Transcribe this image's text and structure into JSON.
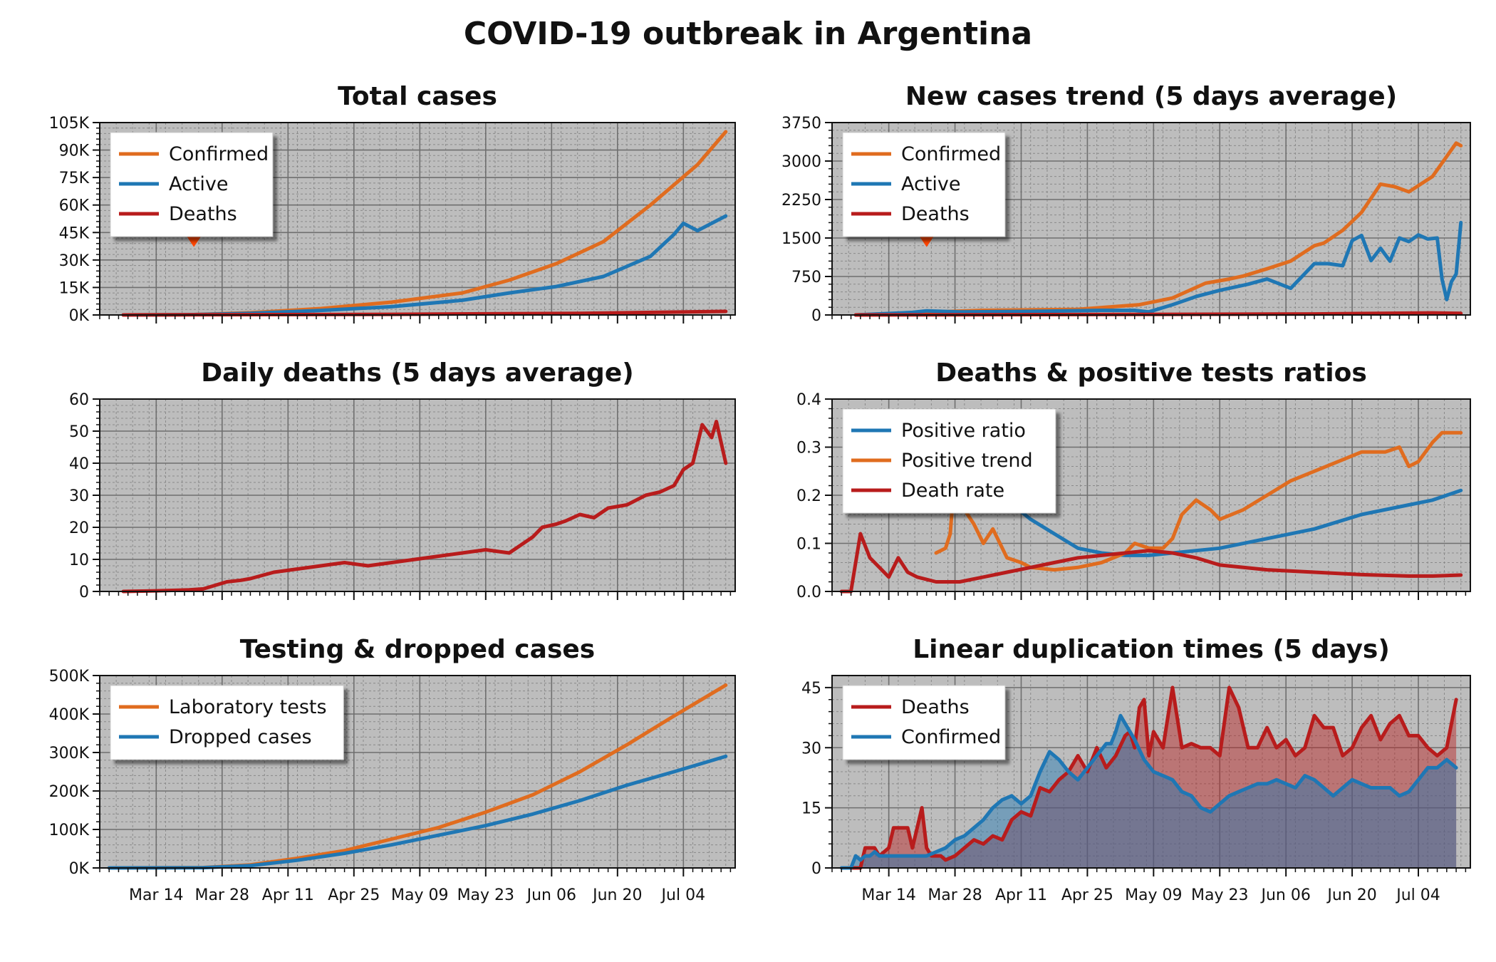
{
  "title": "COVID-19 outbreak in Argentina",
  "colors": {
    "orange": "#e06c1f",
    "blue": "#1f77b4",
    "red": "#b81c1c",
    "arrow": "#ff4500",
    "panel_bg": "#bdbdbd"
  },
  "x_axis": {
    "tick_labels": [
      "Mar 14",
      "Mar 28",
      "Apr 11",
      "Apr 25",
      "May 09",
      "May 23",
      "Jun 06",
      "Jun 20",
      "Jul 04"
    ],
    "tick_days": [
      10,
      24,
      38,
      52,
      66,
      80,
      94,
      108,
      122
    ]
  },
  "chart_data": [
    {
      "id": "total",
      "type": "line",
      "title": "Total cases",
      "ylim": [
        0,
        105000
      ],
      "yticks": [
        0,
        15000,
        30000,
        45000,
        60000,
        75000,
        90000,
        105000
      ],
      "ytick_labels": [
        "0K",
        "15K",
        "30K",
        "45K",
        "60K",
        "75K",
        "90K",
        "105K"
      ],
      "legend": "top-left",
      "arrow_day": 18,
      "series": [
        {
          "name": "Confirmed",
          "color": "#e06c1f",
          "x": [
            3,
            18,
            30,
            45,
            60,
            75,
            85,
            95,
            105,
            115,
            125,
            131
          ],
          "y": [
            0,
            200,
            1200,
            3500,
            7000,
            12000,
            19000,
            28000,
            40000,
            60000,
            82000,
            100000
          ]
        },
        {
          "name": "Active",
          "color": "#1f77b4",
          "x": [
            3,
            18,
            30,
            45,
            60,
            75,
            85,
            95,
            105,
            115,
            120,
            122,
            125,
            131
          ],
          "y": [
            0,
            180,
            900,
            2500,
            4500,
            8000,
            12000,
            15500,
            21000,
            32000,
            44000,
            50000,
            46000,
            54000
          ]
        },
        {
          "name": "Deaths",
          "color": "#b81c1c",
          "x": [
            3,
            60,
            100,
            131
          ],
          "y": [
            0,
            350,
            900,
            1950
          ]
        }
      ]
    },
    {
      "id": "newcases",
      "type": "line",
      "title": "New cases trend (5 days average)",
      "ylim": [
        0,
        3750
      ],
      "yticks": [
        0,
        750,
        1500,
        2250,
        3000,
        3750
      ],
      "ytick_labels": [
        "0",
        "750",
        "1500",
        "2250",
        "3000",
        "3750"
      ],
      "legend": "top-left",
      "arrow_day": 18,
      "series": [
        {
          "name": "Confirmed",
          "color": "#e06c1f",
          "x": [
            3,
            20,
            30,
            50,
            63,
            70,
            77,
            82,
            85,
            90,
            95,
            100,
            102,
            106,
            110,
            114,
            117,
            120,
            125,
            130,
            131
          ],
          "y": [
            0,
            60,
            90,
            110,
            200,
            330,
            620,
            700,
            760,
            900,
            1050,
            1350,
            1400,
            1650,
            2000,
            2550,
            2500,
            2400,
            2700,
            3350,
            3300
          ]
        },
        {
          "name": "Active",
          "color": "#1f77b4",
          "x": [
            3,
            15,
            18,
            25,
            40,
            55,
            62,
            65,
            70,
            75,
            80,
            86,
            90,
            95,
            100,
            103,
            106,
            108,
            110,
            112,
            114,
            116,
            118,
            120,
            122,
            124,
            126,
            127,
            128,
            129,
            130,
            131
          ],
          "y": [
            0,
            50,
            80,
            60,
            70,
            90,
            90,
            60,
            200,
            360,
            480,
            600,
            700,
            520,
            1000,
            1000,
            960,
            1450,
            1550,
            1060,
            1300,
            1050,
            1500,
            1430,
            1560,
            1480,
            1500,
            700,
            300,
            650,
            800,
            1800
          ]
        },
        {
          "name": "Deaths",
          "color": "#b81c1c",
          "x": [
            3,
            60,
            100,
            125,
            131
          ],
          "y": [
            0,
            10,
            20,
            40,
            30
          ]
        }
      ]
    },
    {
      "id": "dailydeaths",
      "type": "line",
      "title": "Daily deaths (5 days average)",
      "ylim": [
        0,
        60
      ],
      "yticks": [
        0,
        10,
        20,
        30,
        40,
        50,
        60
      ],
      "ytick_labels": [
        "0",
        "10",
        "20",
        "30",
        "40",
        "50",
        "60"
      ],
      "series": [
        {
          "name": "",
          "color": "#b81c1c",
          "x": [
            3,
            10,
            17,
            20,
            25,
            28,
            30,
            35,
            40,
            45,
            50,
            55,
            60,
            65,
            70,
            75,
            80,
            85,
            90,
            92,
            95,
            97,
            100,
            103,
            106,
            110,
            114,
            117,
            120,
            122,
            124,
            126,
            127,
            128,
            129,
            131
          ],
          "y": [
            0,
            0.2,
            0.5,
            0.8,
            3,
            3.5,
            4,
            6,
            7,
            8,
            9,
            8,
            9,
            10,
            11,
            12,
            13,
            12,
            17,
            20,
            21,
            22,
            24,
            23,
            26,
            27,
            30,
            31,
            33,
            38,
            40,
            52,
            50,
            48,
            53,
            40
          ]
        }
      ]
    },
    {
      "id": "ratios",
      "type": "line",
      "title": "Deaths & positive tests ratios",
      "ylim": [
        0,
        0.4
      ],
      "yticks": [
        0,
        0.1,
        0.2,
        0.3,
        0.4
      ],
      "ytick_labels": [
        "0.0",
        "0.1",
        "0.2",
        "0.3",
        "0.4"
      ],
      "legend": "top-left",
      "series": [
        {
          "name": "Positive ratio",
          "color": "#1f77b4",
          "x": [
            33,
            35,
            40,
            45,
            50,
            55,
            60,
            65,
            70,
            80,
            90,
            100,
            110,
            120,
            125,
            131
          ],
          "y": [
            0.24,
            0.19,
            0.15,
            0.12,
            0.09,
            0.08,
            0.075,
            0.075,
            0.08,
            0.09,
            0.11,
            0.13,
            0.16,
            0.18,
            0.19,
            0.21
          ]
        },
        {
          "name": "Positive trend",
          "color": "#e06c1f",
          "x": [
            20,
            22,
            23,
            24,
            25,
            26,
            28,
            30,
            32,
            35,
            38,
            40,
            45,
            50,
            55,
            60,
            62,
            65,
            68,
            70,
            72,
            75,
            78,
            80,
            85,
            90,
            95,
            100,
            105,
            110,
            115,
            118,
            120,
            122,
            125,
            127,
            131
          ],
          "y": [
            0.08,
            0.09,
            0.12,
            0.25,
            0.2,
            0.17,
            0.14,
            0.1,
            0.13,
            0.07,
            0.06,
            0.05,
            0.045,
            0.05,
            0.06,
            0.08,
            0.1,
            0.09,
            0.09,
            0.11,
            0.16,
            0.19,
            0.17,
            0.15,
            0.17,
            0.2,
            0.23,
            0.25,
            0.27,
            0.29,
            0.29,
            0.3,
            0.26,
            0.27,
            0.31,
            0.33,
            0.33
          ]
        },
        {
          "name": "Death rate",
          "color": "#b81c1c",
          "x": [
            0,
            2,
            4,
            6,
            8,
            10,
            12,
            14,
            16,
            20,
            25,
            30,
            35,
            40,
            45,
            50,
            55,
            60,
            65,
            70,
            75,
            80,
            90,
            100,
            110,
            120,
            125,
            131
          ],
          "y": [
            0,
            0,
            0.12,
            0.07,
            0.05,
            0.03,
            0.07,
            0.04,
            0.03,
            0.02,
            0.02,
            0.03,
            0.04,
            0.05,
            0.06,
            0.07,
            0.075,
            0.08,
            0.085,
            0.08,
            0.07,
            0.055,
            0.045,
            0.04,
            0.035,
            0.032,
            0.032,
            0.034
          ]
        }
      ]
    },
    {
      "id": "testing",
      "type": "line",
      "title": "Testing & dropped cases",
      "ylim": [
        0,
        500000
      ],
      "yticks": [
        0,
        100000,
        200000,
        300000,
        400000,
        500000
      ],
      "ytick_labels": [
        "0K",
        "100K",
        "200K",
        "300K",
        "400K",
        "500K"
      ],
      "legend": "top-left",
      "series": [
        {
          "name": "Laboratory tests",
          "color": "#e06c1f",
          "x": [
            0,
            20,
            30,
            40,
            50,
            60,
            70,
            80,
            90,
            100,
            110,
            120,
            131
          ],
          "y": [
            0,
            1000,
            8000,
            25000,
            45000,
            75000,
            105000,
            145000,
            190000,
            250000,
            320000,
            395000,
            475000
          ]
        },
        {
          "name": "Dropped cases",
          "color": "#1f77b4",
          "x": [
            0,
            20,
            30,
            40,
            50,
            60,
            70,
            80,
            90,
            100,
            110,
            120,
            131
          ],
          "y": [
            0,
            800,
            6000,
            20000,
            38000,
            60000,
            85000,
            110000,
            140000,
            175000,
            215000,
            250000,
            290000
          ]
        }
      ]
    },
    {
      "id": "duplication",
      "type": "area",
      "title": "Linear duplication times (5 days)",
      "ylim": [
        0,
        48
      ],
      "yticks": [
        0,
        15,
        30,
        45
      ],
      "ytick_labels": [
        "0",
        "15",
        "30",
        "45"
      ],
      "legend": "top-left",
      "series": [
        {
          "name": "Deaths",
          "color": "#b81c1c",
          "x": [
            2,
            4,
            5,
            7,
            8,
            10,
            11,
            14,
            15,
            17,
            18,
            19,
            20,
            21,
            22,
            24,
            26,
            28,
            30,
            32,
            34,
            36,
            38,
            40,
            42,
            44,
            46,
            48,
            50,
            52,
            54,
            56,
            58,
            60,
            61,
            62,
            63,
            64,
            65,
            66,
            68,
            70,
            72,
            74,
            76,
            78,
            80,
            82,
            84,
            86,
            88,
            90,
            92,
            94,
            96,
            98,
            100,
            102,
            104,
            106,
            108,
            110,
            112,
            114,
            116,
            118,
            120,
            122,
            124,
            126,
            128,
            130
          ],
          "y": [
            0,
            0,
            5,
            5,
            3,
            5,
            10,
            10,
            5,
            15,
            5,
            3,
            3,
            3,
            2,
            3,
            5,
            7,
            6,
            8,
            7,
            12,
            14,
            13,
            20,
            19,
            22,
            24,
            28,
            24,
            30,
            25,
            28,
            33,
            34,
            30,
            40,
            42,
            28,
            34,
            30,
            45,
            30,
            31,
            30,
            30,
            28,
            45,
            40,
            30,
            30,
            35,
            30,
            32,
            28,
            30,
            38,
            35,
            35,
            28,
            30,
            35,
            38,
            32,
            36,
            38,
            33,
            33,
            30,
            28,
            30,
            42
          ]
        },
        {
          "name": "Confirmed",
          "color": "#1f77b4",
          "x": [
            0,
            2,
            3,
            4,
            5,
            6,
            7,
            8,
            10,
            12,
            14,
            16,
            18,
            20,
            22,
            24,
            26,
            28,
            30,
            32,
            34,
            36,
            38,
            40,
            42,
            44,
            46,
            48,
            50,
            52,
            54,
            56,
            57,
            58,
            59,
            60,
            62,
            64,
            66,
            68,
            70,
            72,
            74,
            76,
            78,
            80,
            82,
            84,
            86,
            88,
            90,
            92,
            94,
            96,
            98,
            100,
            102,
            104,
            106,
            108,
            110,
            112,
            114,
            116,
            118,
            120,
            122,
            124,
            126,
            128,
            130
          ],
          "y": [
            0,
            0,
            3,
            2,
            3,
            3,
            4,
            3,
            3,
            3,
            3,
            3,
            3,
            4,
            5,
            7,
            8,
            10,
            12,
            15,
            17,
            18,
            16,
            18,
            24,
            29,
            27,
            24,
            22,
            25,
            28,
            31,
            31,
            34,
            38,
            36,
            32,
            27,
            24,
            23,
            22,
            19,
            18,
            15,
            14,
            16,
            18,
            19,
            20,
            21,
            21,
            22,
            21,
            20,
            23,
            22,
            20,
            18,
            20,
            22,
            21,
            20,
            20,
            20,
            18,
            19,
            22,
            25,
            25,
            27,
            25
          ]
        }
      ]
    }
  ]
}
